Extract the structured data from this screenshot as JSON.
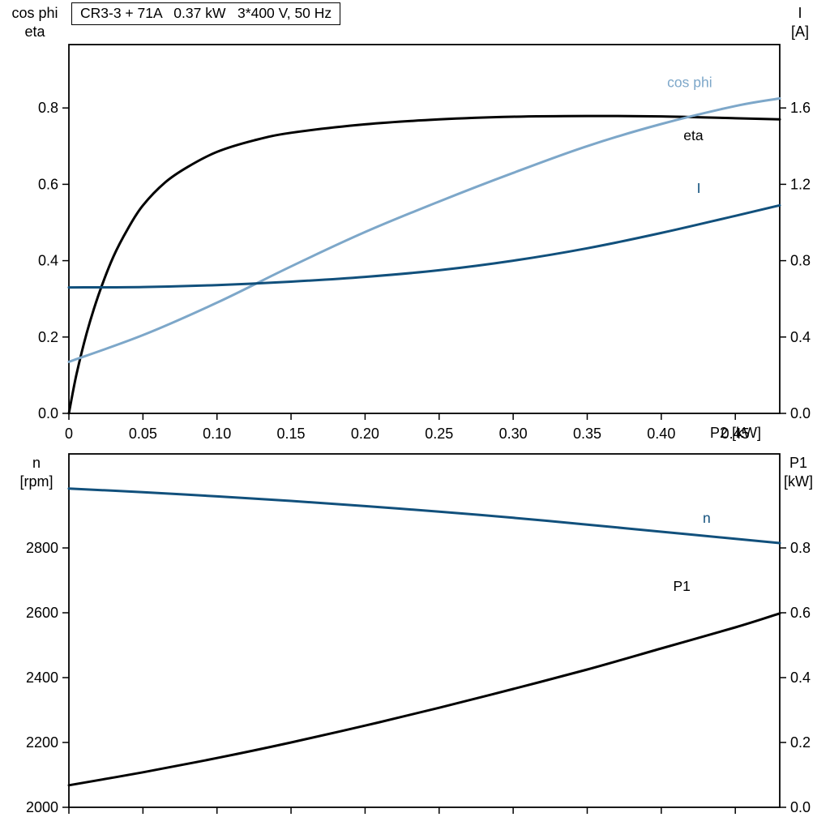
{
  "page": {
    "background": "#ffffff"
  },
  "chart_data": [
    {
      "type": "line",
      "title": "CR3-3 + 71A   0.37 kW   3*400 V, 50 Hz",
      "x_axis": {
        "label": "P2 [kW]",
        "min": 0,
        "max": 0.48,
        "show_labels": true,
        "ticks": [
          {
            "v": 0,
            "t": "0"
          },
          {
            "v": 0.05,
            "t": "0.05"
          },
          {
            "v": 0.1,
            "t": "0.10"
          },
          {
            "v": 0.15,
            "t": "0.15"
          },
          {
            "v": 0.2,
            "t": "0.20"
          },
          {
            "v": 0.25,
            "t": "0.25"
          },
          {
            "v": 0.3,
            "t": "0.30"
          },
          {
            "v": 0.35,
            "t": "0.35"
          },
          {
            "v": 0.4,
            "t": "0.40"
          },
          {
            "v": 0.45,
            "t": "0.45"
          }
        ]
      },
      "left_axis": {
        "title_lines": [
          "cos phi",
          "eta"
        ],
        "min": 0,
        "max": 0.966,
        "ticks": [
          {
            "v": 0.0,
            "t": "0.0"
          },
          {
            "v": 0.2,
            "t": "0.2"
          },
          {
            "v": 0.4,
            "t": "0.4"
          },
          {
            "v": 0.6,
            "t": "0.6"
          },
          {
            "v": 0.8,
            "t": "0.8"
          }
        ]
      },
      "right_axis": {
        "title_lines": [
          "I",
          "[A]"
        ],
        "min": 0,
        "max": 1.932,
        "ticks": [
          {
            "v": 0.0,
            "t": "0.0"
          },
          {
            "v": 0.4,
            "t": "0.4"
          },
          {
            "v": 0.8,
            "t": "0.8"
          },
          {
            "v": 1.2,
            "t": "1.2"
          },
          {
            "v": 1.6,
            "t": "1.6"
          }
        ]
      },
      "series": [
        {
          "name": "eta",
          "label": "eta",
          "color": "#000000",
          "axis": "left",
          "label_x": 0.415,
          "label_y": 0.715,
          "x": [
            0,
            0.005,
            0.012,
            0.02,
            0.03,
            0.04,
            0.05,
            0.065,
            0.08,
            0.1,
            0.125,
            0.15,
            0.2,
            0.25,
            0.3,
            0.35,
            0.4,
            0.45,
            0.48
          ],
          "y": [
            0,
            0.1,
            0.21,
            0.31,
            0.41,
            0.485,
            0.545,
            0.605,
            0.645,
            0.685,
            0.715,
            0.735,
            0.757,
            0.77,
            0.777,
            0.779,
            0.778,
            0.773,
            0.77
          ]
        },
        {
          "name": "cos-phi",
          "label": "cos phi",
          "color": "#7da7c9",
          "axis": "left",
          "label_x": 0.404,
          "label_y": 0.855,
          "x": [
            0,
            0.05,
            0.1,
            0.15,
            0.2,
            0.25,
            0.3,
            0.35,
            0.4,
            0.45,
            0.48
          ],
          "y": [
            0.135,
            0.205,
            0.29,
            0.385,
            0.475,
            0.555,
            0.63,
            0.7,
            0.758,
            0.805,
            0.825
          ]
        },
        {
          "name": "current-I",
          "label": "I",
          "color": "#11507c",
          "axis": "right",
          "label_x": 0.424,
          "label_y": 1.155,
          "x": [
            0,
            0.05,
            0.1,
            0.15,
            0.2,
            0.25,
            0.3,
            0.35,
            0.4,
            0.45,
            0.48
          ],
          "y": [
            0.66,
            0.662,
            0.672,
            0.69,
            0.715,
            0.75,
            0.8,
            0.865,
            0.945,
            1.035,
            1.09
          ]
        }
      ]
    },
    {
      "type": "line",
      "title": "",
      "x_axis": {
        "label": "",
        "min": 0,
        "max": 0.48,
        "show_labels": false,
        "ticks": [
          {
            "v": 0,
            "t": ""
          },
          {
            "v": 0.05,
            "t": ""
          },
          {
            "v": 0.1,
            "t": ""
          },
          {
            "v": 0.15,
            "t": ""
          },
          {
            "v": 0.2,
            "t": ""
          },
          {
            "v": 0.25,
            "t": ""
          },
          {
            "v": 0.3,
            "t": ""
          },
          {
            "v": 0.35,
            "t": ""
          },
          {
            "v": 0.4,
            "t": ""
          },
          {
            "v": 0.45,
            "t": ""
          }
        ]
      },
      "left_axis": {
        "title_lines": [
          "n",
          "[rpm]"
        ],
        "min": 2000,
        "max": 3090,
        "ticks": [
          {
            "v": 2000,
            "t": "2000"
          },
          {
            "v": 2200,
            "t": "2200"
          },
          {
            "v": 2400,
            "t": "2400"
          },
          {
            "v": 2600,
            "t": "2600"
          },
          {
            "v": 2800,
            "t": "2800"
          }
        ]
      },
      "right_axis": {
        "title_lines": [
          "P1",
          "[kW]"
        ],
        "min": 0,
        "max": 1.09,
        "ticks": [
          {
            "v": 0.0,
            "t": "0.0"
          },
          {
            "v": 0.2,
            "t": "0.2"
          },
          {
            "v": 0.4,
            "t": "0.4"
          },
          {
            "v": 0.6,
            "t": "0.6"
          },
          {
            "v": 0.8,
            "t": "0.8"
          }
        ]
      },
      "series": [
        {
          "name": "speed-n",
          "label": "n",
          "color": "#11507c",
          "axis": "left",
          "label_x": 0.428,
          "label_y": 2878,
          "x": [
            0,
            0.05,
            0.1,
            0.15,
            0.2,
            0.25,
            0.3,
            0.35,
            0.4,
            0.45,
            0.48
          ],
          "y": [
            2983,
            2972,
            2959,
            2945,
            2929,
            2912,
            2893,
            2872,
            2850,
            2828,
            2815
          ]
        },
        {
          "name": "power-P1",
          "label": "P1",
          "color": "#000000",
          "axis": "right",
          "label_x": 0.408,
          "label_y": 0.668,
          "x": [
            0,
            0.05,
            0.1,
            0.15,
            0.2,
            0.25,
            0.3,
            0.35,
            0.4,
            0.45,
            0.48
          ],
          "y": [
            0.068,
            0.108,
            0.152,
            0.2,
            0.252,
            0.307,
            0.365,
            0.425,
            0.49,
            0.555,
            0.598
          ]
        }
      ]
    }
  ]
}
